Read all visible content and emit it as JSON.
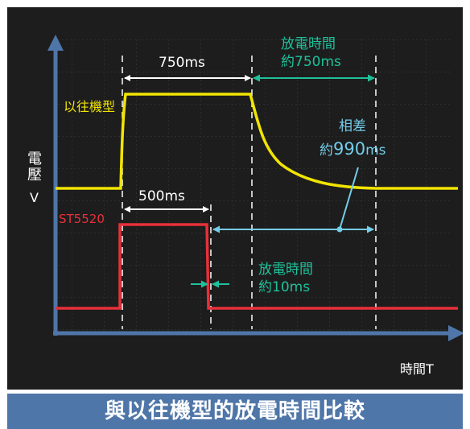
{
  "title_banner": "與以往機型的放電時間比較",
  "axes": {
    "y_label_main": "電壓",
    "y_label_unit": "V",
    "x_label": "時間T"
  },
  "legacy": {
    "name": "以往機型",
    "pulse_width": "750ms",
    "discharge_line1": "放電時間",
    "discharge_line2": "約750ms",
    "color": "#f1e400"
  },
  "st5520": {
    "name": "ST5520",
    "pulse_width": "500ms",
    "discharge_line1": "放電時間",
    "discharge_line2": "約10ms",
    "color": "#e8303a"
  },
  "difference": {
    "line1": "相差",
    "prefix": "約",
    "value": "990",
    "unit": "ms",
    "color": "#74cde9"
  },
  "colors": {
    "background": "#1d1d1d",
    "axis": "#4f76a8",
    "discharge_arrow": "#1fc19a",
    "banner": "#4f76a8"
  }
}
